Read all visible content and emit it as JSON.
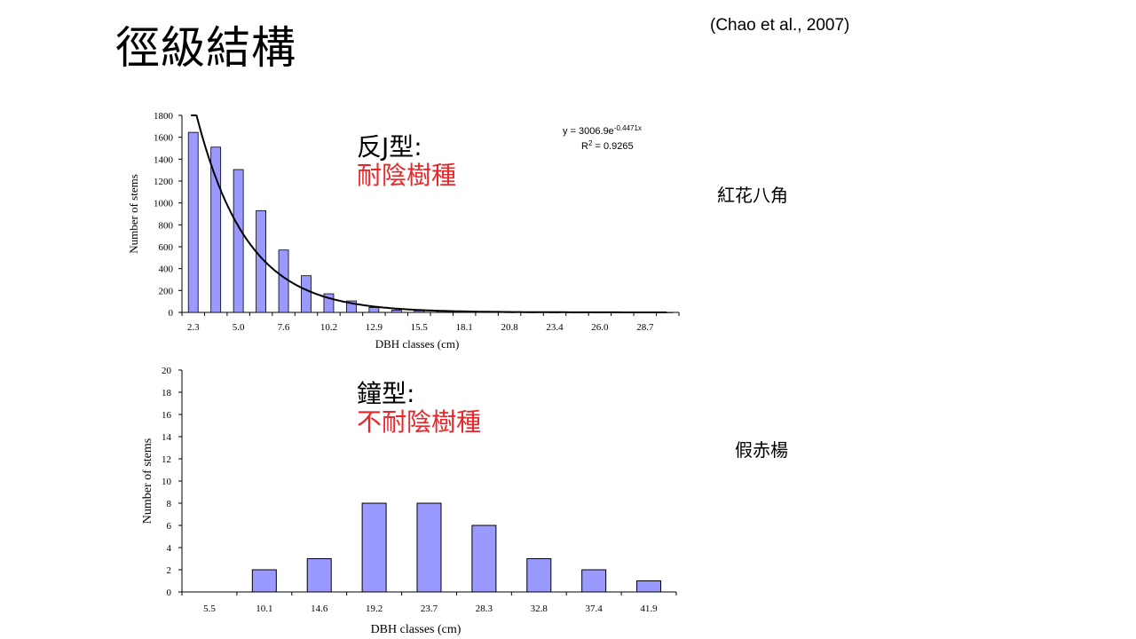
{
  "slide": {
    "title": "徑級結構",
    "citation": "(Chao et al., 2007)"
  },
  "charts_meta": {
    "top": {
      "species": "紅花八角",
      "shape_label": "反J型:",
      "tolerance_label": "耐陰樹種",
      "equation_prefix": "y = 3006.9e",
      "equation_exponent": "-0.4471x",
      "r2_prefix": "R",
      "r2_sup": "2",
      "r2_value": " = 0.9265"
    },
    "bottom": {
      "species": "假赤楊",
      "shape_label": "鐘型:",
      "tolerance_label": "不耐陰樹種"
    }
  },
  "colors": {
    "bar_fill": "#9999ff",
    "bar_stroke": "#000000",
    "curve": "#000000",
    "tolerance_text": "#e8272b"
  },
  "chart_data": [
    {
      "type": "bar",
      "title": "",
      "xlabel": "DBH classes (cm)",
      "ylabel": "Number of stems",
      "ylim": [
        0,
        1800
      ],
      "yticks": [
        0,
        200,
        400,
        600,
        800,
        1000,
        1200,
        1400,
        1600,
        1800
      ],
      "x_tick_labels": [
        "2.3",
        "5.0",
        "7.6",
        "10.2",
        "12.9",
        "15.5",
        "18.1",
        "20.8",
        "23.4",
        "26.0",
        "28.7"
      ],
      "classes": 22,
      "values": [
        1645,
        1510,
        1305,
        930,
        570,
        335,
        170,
        105,
        45,
        20,
        15,
        10,
        5,
        3,
        2,
        2,
        1,
        1,
        1,
        1,
        1,
        1
      ],
      "trendline": {
        "type": "exponential",
        "a": 3006.9,
        "b": -0.4471
      },
      "grid": false
    },
    {
      "type": "bar",
      "title": "",
      "xlabel": "DBH classes (cm)",
      "ylabel": "Number of stems",
      "ylim": [
        0,
        20
      ],
      "yticks": [
        0,
        2,
        4,
        6,
        8,
        10,
        12,
        14,
        16,
        18,
        20
      ],
      "categories": [
        "5.5",
        "10.1",
        "14.6",
        "19.2",
        "23.7",
        "28.3",
        "32.8",
        "37.4",
        "41.9"
      ],
      "values": [
        0,
        2,
        3,
        8,
        8,
        6,
        3,
        2,
        1
      ],
      "grid": false
    }
  ]
}
